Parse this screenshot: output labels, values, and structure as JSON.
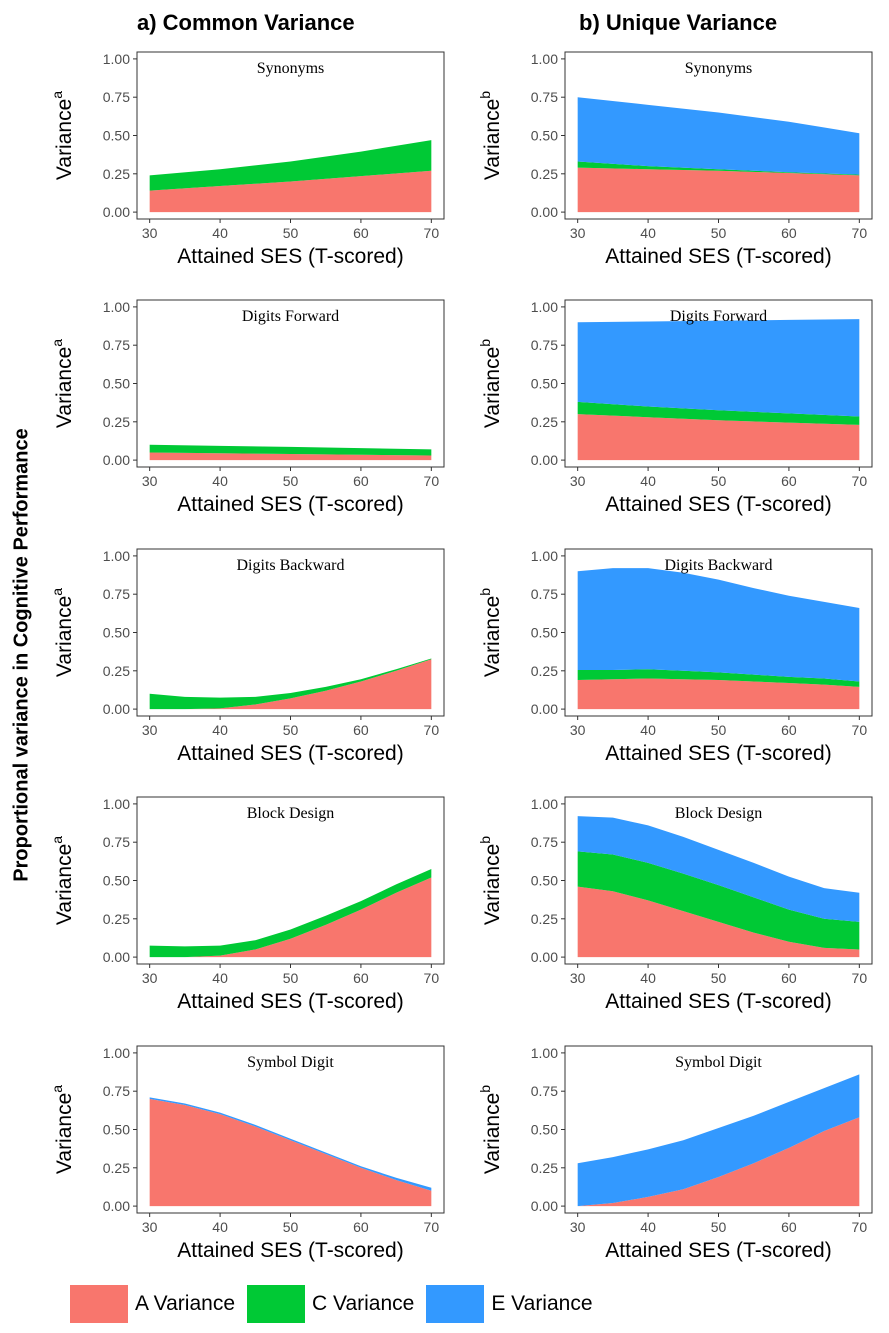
{
  "columns": [
    {
      "title": "a) Common Variance"
    },
    {
      "title": "b) Unique Variance"
    }
  ],
  "shared_ylabel": "Proportional variance in Cognitive Performance",
  "legend": [
    {
      "label": "A Variance",
      "color": "#f8766d"
    },
    {
      "label": "C Variance",
      "color": "#00c935"
    },
    {
      "label": "E Variance",
      "color": "#3399ff"
    }
  ],
  "chart_data": [
    {
      "type": "area",
      "column": "a",
      "title": "Synonyms",
      "xlabel": "Attained SES (T-scored)",
      "ylabel": "Variance",
      "ylabel_sup": "a",
      "xlim": [
        30,
        70
      ],
      "ylim": [
        0,
        1
      ],
      "xticks": [
        30,
        40,
        50,
        60,
        70
      ],
      "yticks": [
        "0.00",
        "0.25",
        "0.50",
        "0.75",
        "1.00"
      ],
      "stacked": true,
      "x": [
        30,
        40,
        50,
        60,
        70
      ],
      "series": [
        {
          "name": "A Variance",
          "values": [
            0.14,
            0.17,
            0.2,
            0.235,
            0.27
          ]
        },
        {
          "name": "C Variance",
          "values": [
            0.1,
            0.11,
            0.13,
            0.16,
            0.2
          ]
        }
      ]
    },
    {
      "type": "area",
      "column": "b",
      "title": "Synonyms",
      "xlabel": "Attained SES (T-scored)",
      "ylabel": "Variance",
      "ylabel_sup": "b",
      "xlim": [
        30,
        70
      ],
      "ylim": [
        0,
        1
      ],
      "xticks": [
        30,
        40,
        50,
        60,
        70
      ],
      "yticks": [
        "0.00",
        "0.25",
        "0.50",
        "0.75",
        "1.00"
      ],
      "stacked": true,
      "x": [
        30,
        40,
        50,
        60,
        70
      ],
      "series": [
        {
          "name": "A Variance",
          "values": [
            0.29,
            0.28,
            0.27,
            0.255,
            0.24
          ]
        },
        {
          "name": "C Variance",
          "values": [
            0.04,
            0.02,
            0.01,
            0.005,
            0.005
          ]
        },
        {
          "name": "E Variance",
          "values": [
            0.42,
            0.4,
            0.37,
            0.33,
            0.27
          ]
        }
      ]
    },
    {
      "type": "area",
      "column": "a",
      "title": "Digits Forward",
      "xlabel": "Attained SES (T-scored)",
      "ylabel": "Variance",
      "ylabel_sup": "a",
      "xlim": [
        30,
        70
      ],
      "ylim": [
        0,
        1
      ],
      "xticks": [
        30,
        40,
        50,
        60,
        70
      ],
      "yticks": [
        "0.00",
        "0.25",
        "0.50",
        "0.75",
        "1.00"
      ],
      "stacked": true,
      "x": [
        30,
        40,
        50,
        60,
        70
      ],
      "series": [
        {
          "name": "A Variance",
          "values": [
            0.05,
            0.045,
            0.04,
            0.035,
            0.03
          ]
        },
        {
          "name": "C Variance",
          "values": [
            0.05,
            0.048,
            0.046,
            0.043,
            0.04
          ]
        }
      ]
    },
    {
      "type": "area",
      "column": "b",
      "title": "Digits Forward",
      "xlabel": "Attained SES (T-scored)",
      "ylabel": "Variance",
      "ylabel_sup": "b",
      "xlim": [
        30,
        70
      ],
      "ylim": [
        0,
        1
      ],
      "xticks": [
        30,
        40,
        50,
        60,
        70
      ],
      "yticks": [
        "0.00",
        "0.25",
        "0.50",
        "0.75",
        "1.00"
      ],
      "stacked": true,
      "x": [
        30,
        40,
        50,
        60,
        70
      ],
      "series": [
        {
          "name": "A Variance",
          "values": [
            0.3,
            0.28,
            0.26,
            0.245,
            0.23
          ]
        },
        {
          "name": "C Variance",
          "values": [
            0.08,
            0.07,
            0.065,
            0.06,
            0.055
          ]
        },
        {
          "name": "E Variance",
          "values": [
            0.52,
            0.555,
            0.585,
            0.61,
            0.635
          ]
        }
      ]
    },
    {
      "type": "area",
      "column": "a",
      "title": "Digits Backward",
      "xlabel": "Attained SES (T-scored)",
      "ylabel": "Variance",
      "ylabel_sup": "a",
      "xlim": [
        30,
        70
      ],
      "ylim": [
        0,
        1
      ],
      "xticks": [
        30,
        40,
        50,
        60,
        70
      ],
      "yticks": [
        "0.00",
        "0.25",
        "0.50",
        "0.75",
        "1.00"
      ],
      "stacked": true,
      "x": [
        30,
        35,
        40,
        45,
        50,
        55,
        60,
        65,
        70
      ],
      "series": [
        {
          "name": "A Variance",
          "values": [
            0.0,
            0.0,
            0.005,
            0.03,
            0.07,
            0.12,
            0.18,
            0.25,
            0.325
          ]
        },
        {
          "name": "C Variance",
          "values": [
            0.1,
            0.08,
            0.07,
            0.05,
            0.035,
            0.025,
            0.015,
            0.01,
            0.005
          ]
        }
      ]
    },
    {
      "type": "area",
      "column": "b",
      "title": "Digits Backward",
      "xlabel": "Attained SES (T-scored)",
      "ylabel": "Variance",
      "ylabel_sup": "b",
      "xlim": [
        30,
        70
      ],
      "ylim": [
        0,
        1
      ],
      "xticks": [
        30,
        40,
        50,
        60,
        70
      ],
      "yticks": [
        "0.00",
        "0.25",
        "0.50",
        "0.75",
        "1.00"
      ],
      "stacked": true,
      "x": [
        30,
        35,
        40,
        45,
        50,
        55,
        60,
        65,
        70
      ],
      "series": [
        {
          "name": "A Variance",
          "values": [
            0.19,
            0.195,
            0.2,
            0.195,
            0.19,
            0.18,
            0.17,
            0.16,
            0.145
          ]
        },
        {
          "name": "C Variance",
          "values": [
            0.065,
            0.06,
            0.06,
            0.055,
            0.05,
            0.045,
            0.04,
            0.04,
            0.035
          ]
        },
        {
          "name": "E Variance",
          "values": [
            0.645,
            0.665,
            0.66,
            0.64,
            0.605,
            0.565,
            0.53,
            0.5,
            0.48
          ]
        }
      ]
    },
    {
      "type": "area",
      "column": "a",
      "title": "Block Design",
      "xlabel": "Attained SES (T-scored)",
      "ylabel": "Variance",
      "ylabel_sup": "a",
      "xlim": [
        30,
        70
      ],
      "ylim": [
        0,
        1
      ],
      "xticks": [
        30,
        40,
        50,
        60,
        70
      ],
      "yticks": [
        "0.00",
        "0.25",
        "0.50",
        "0.75",
        "1.00"
      ],
      "stacked": true,
      "x": [
        30,
        35,
        40,
        45,
        50,
        55,
        60,
        65,
        70
      ],
      "series": [
        {
          "name": "A Variance",
          "values": [
            0.0,
            0.0,
            0.01,
            0.05,
            0.12,
            0.21,
            0.31,
            0.42,
            0.52
          ]
        },
        {
          "name": "C Variance",
          "values": [
            0.075,
            0.07,
            0.065,
            0.06,
            0.06,
            0.06,
            0.055,
            0.055,
            0.055
          ]
        }
      ]
    },
    {
      "type": "area",
      "column": "b",
      "title": "Block Design",
      "xlabel": "Attained SES (T-scored)",
      "ylabel": "Variance",
      "ylabel_sup": "b",
      "xlim": [
        30,
        70
      ],
      "ylim": [
        0,
        1
      ],
      "xticks": [
        30,
        40,
        50,
        60,
        70
      ],
      "yticks": [
        "0.00",
        "0.25",
        "0.50",
        "0.75",
        "1.00"
      ],
      "stacked": true,
      "x": [
        30,
        35,
        40,
        45,
        50,
        55,
        60,
        65,
        70
      ],
      "series": [
        {
          "name": "A Variance",
          "values": [
            0.46,
            0.43,
            0.37,
            0.3,
            0.23,
            0.16,
            0.1,
            0.06,
            0.05
          ]
        },
        {
          "name": "C Variance",
          "values": [
            0.23,
            0.24,
            0.245,
            0.245,
            0.24,
            0.23,
            0.21,
            0.19,
            0.18
          ]
        },
        {
          "name": "E Variance",
          "values": [
            0.23,
            0.24,
            0.245,
            0.24,
            0.23,
            0.225,
            0.215,
            0.2,
            0.19
          ]
        }
      ]
    },
    {
      "type": "area",
      "column": "a",
      "title": "Symbol Digit",
      "xlabel": "Attained SES (T-scored)",
      "ylabel": "Variance",
      "ylabel_sup": "a",
      "xlim": [
        30,
        70
      ],
      "ylim": [
        0,
        1
      ],
      "xticks": [
        30,
        40,
        50,
        60,
        70
      ],
      "yticks": [
        "0.00",
        "0.25",
        "0.50",
        "0.75",
        "1.00"
      ],
      "stacked": true,
      "x": [
        30,
        35,
        40,
        45,
        50,
        55,
        60,
        65,
        70
      ],
      "series": [
        {
          "name": "A Variance",
          "values": [
            0.7,
            0.66,
            0.6,
            0.52,
            0.43,
            0.34,
            0.25,
            0.17,
            0.1
          ]
        },
        {
          "name": "C Variance",
          "values": [
            0.0,
            0.0,
            0.0,
            0.0,
            0.0,
            0.0,
            0.0,
            0.0,
            0.0
          ]
        },
        {
          "name": "E Variance",
          "values": [
            0.01,
            0.01,
            0.01,
            0.01,
            0.01,
            0.01,
            0.01,
            0.015,
            0.02
          ]
        }
      ]
    },
    {
      "type": "area",
      "column": "b",
      "title": "Symbol Digit",
      "xlabel": "Attained SES (T-scored)",
      "ylabel": "Variance",
      "ylabel_sup": "b",
      "xlim": [
        30,
        70
      ],
      "ylim": [
        0,
        1
      ],
      "xticks": [
        30,
        40,
        50,
        60,
        70
      ],
      "yticks": [
        "0.00",
        "0.25",
        "0.50",
        "0.75",
        "1.00"
      ],
      "stacked": true,
      "x": [
        30,
        35,
        40,
        45,
        50,
        55,
        60,
        65,
        70
      ],
      "series": [
        {
          "name": "A Variance",
          "values": [
            0.0,
            0.02,
            0.06,
            0.11,
            0.19,
            0.28,
            0.38,
            0.49,
            0.58
          ]
        },
        {
          "name": "C Variance",
          "values": [
            0.0,
            0.0,
            0.0,
            0.0,
            0.0,
            0.0,
            0.0,
            0.0,
            0.0
          ]
        },
        {
          "name": "E Variance",
          "values": [
            0.28,
            0.3,
            0.31,
            0.32,
            0.32,
            0.31,
            0.3,
            0.28,
            0.28
          ]
        }
      ]
    }
  ]
}
